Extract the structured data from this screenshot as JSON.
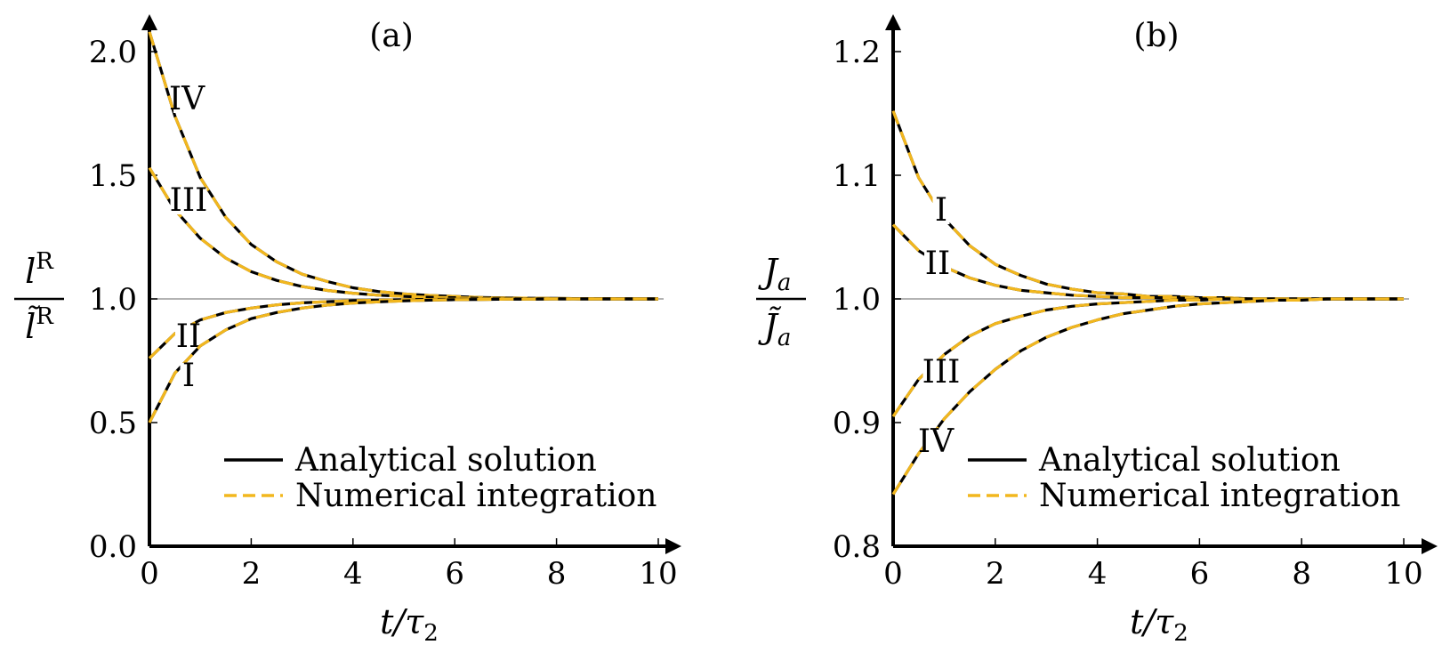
{
  "legend": {
    "analytical": "Analytical solution",
    "numerical": "Numerical integration"
  },
  "colors": {
    "analytical": "#000000",
    "numerical": "#f2b71e",
    "reference": "#9a9a9a",
    "axis": "#000000"
  },
  "chart_data": [
    {
      "type": "line",
      "title": "(a)",
      "xlabel": "t/τ2",
      "ylabel": {
        "numerator": "l^R",
        "denominator": "l̃^R"
      },
      "xlim": [
        0,
        10
      ],
      "ylim": [
        0,
        2.1
      ],
      "xticks": [
        0,
        2,
        4,
        6,
        8,
        10
      ],
      "xtick_labels": [
        "0",
        "2",
        "4",
        "6",
        "8",
        "10"
      ],
      "yticks": [
        0,
        0.5,
        1,
        1.5,
        2
      ],
      "ytick_labels": [
        "0.0",
        "0.5",
        "1.0",
        "1.5",
        "2.0"
      ],
      "reference_line": 1.0,
      "grid": false,
      "legend_position": "bottom-right",
      "x": [
        0,
        0.5,
        1,
        1.5,
        2,
        2.5,
        3,
        3.5,
        4,
        4.5,
        5,
        5.5,
        6,
        6.5,
        7,
        7.5,
        8,
        8.5,
        9,
        9.5,
        10
      ],
      "series": [
        {
          "label": "IV",
          "values": [
            2.08,
            1.74,
            1.49,
            1.33,
            1.22,
            1.15,
            1.1,
            1.07,
            1.045,
            1.03,
            1.02,
            1.014,
            1.01,
            1.006,
            1.004,
            1.003,
            1.002,
            1.001,
            1.001,
            1.0,
            1.0
          ]
        },
        {
          "label": "III",
          "values": [
            1.53,
            1.36,
            1.245,
            1.165,
            1.11,
            1.075,
            1.05,
            1.034,
            1.023,
            1.015,
            1.01,
            1.007,
            1.005,
            1.003,
            1.002,
            1.001,
            1.001,
            1.0,
            1.0,
            1.0,
            1.0
          ]
        },
        {
          "label": "II",
          "values": [
            0.76,
            0.86,
            0.915,
            0.945,
            0.963,
            0.976,
            0.984,
            0.989,
            0.993,
            0.995,
            0.997,
            0.998,
            0.999,
            0.999,
            1.0,
            1.0,
            1.0,
            1.0,
            1.0,
            1.0,
            1.0
          ]
        },
        {
          "label": "I",
          "values": [
            0.5,
            0.7,
            0.81,
            0.875,
            0.92,
            0.945,
            0.963,
            0.975,
            0.983,
            0.988,
            0.992,
            0.995,
            0.997,
            0.998,
            0.999,
            0.999,
            1.0,
            1.0,
            1.0,
            1.0,
            1.0
          ]
        }
      ]
    },
    {
      "type": "line",
      "title": "(b)",
      "xlabel": "t/τ2",
      "ylabel": {
        "numerator": "J_a",
        "denominator": "J̃_a"
      },
      "xlim": [
        0,
        10
      ],
      "ylim": [
        0.8,
        1.225
      ],
      "xticks": [
        0,
        2,
        4,
        6,
        8,
        10
      ],
      "xtick_labels": [
        "0",
        "2",
        "4",
        "6",
        "8",
        "10"
      ],
      "yticks": [
        0.8,
        0.9,
        1.0,
        1.1,
        1.2
      ],
      "ytick_labels": [
        "0.8",
        "0.9",
        "1.0",
        "1.1",
        "1.2"
      ],
      "reference_line": 1.0,
      "grid": false,
      "legend_position": "bottom-right",
      "x": [
        0,
        0.5,
        1,
        1.5,
        2,
        2.5,
        3,
        3.5,
        4,
        4.5,
        5,
        5.5,
        6,
        6.5,
        7,
        7.5,
        8,
        8.5,
        9,
        9.5,
        10
      ],
      "series": [
        {
          "label": "I",
          "values": [
            1.152,
            1.098,
            1.065,
            1.043,
            1.028,
            1.019,
            1.012,
            1.008,
            1.005,
            1.004,
            1.002,
            1.002,
            1.001,
            1.001,
            1.0,
            1.0,
            1.0,
            1.0,
            1.0,
            1.0,
            1.0
          ]
        },
        {
          "label": "II",
          "values": [
            1.06,
            1.039,
            1.026,
            1.017,
            1.011,
            1.007,
            1.005,
            1.003,
            1.002,
            1.001,
            1.001,
            1.001,
            1.0,
            1.0,
            1.0,
            1.0,
            1.0,
            1.0,
            1.0,
            1.0,
            1.0
          ]
        },
        {
          "label": "III",
          "values": [
            0.905,
            0.935,
            0.955,
            0.97,
            0.98,
            0.986,
            0.991,
            0.994,
            0.996,
            0.997,
            0.998,
            0.999,
            0.999,
            1.0,
            1.0,
            1.0,
            1.0,
            1.0,
            1.0,
            1.0,
            1.0
          ]
        },
        {
          "label": "IV",
          "values": [
            0.842,
            0.875,
            0.903,
            0.925,
            0.943,
            0.958,
            0.969,
            0.977,
            0.983,
            0.988,
            0.991,
            0.994,
            0.996,
            0.997,
            0.998,
            0.999,
            0.999,
            1.0,
            1.0,
            1.0,
            1.0
          ]
        }
      ]
    }
  ]
}
